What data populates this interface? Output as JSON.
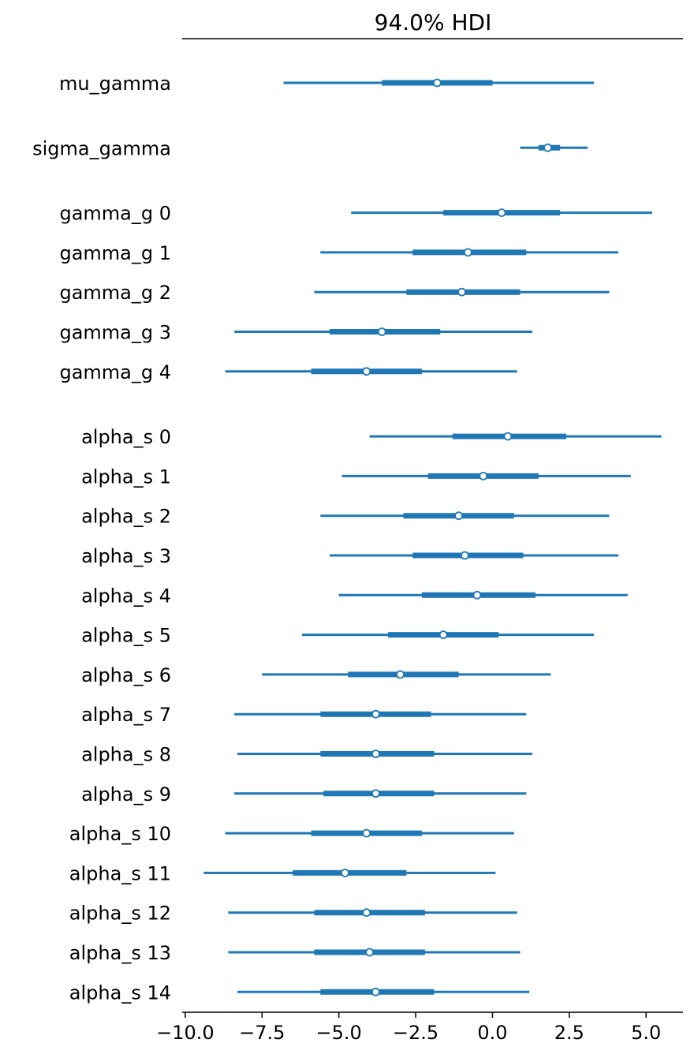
{
  "chart_data": {
    "type": "forest",
    "title": "94.0% HDI",
    "xlim": [
      -10.1,
      6.2
    ],
    "xticks": [
      {
        "value": -10.0,
        "label": "−10.0"
      },
      {
        "value": -7.5,
        "label": "−7.5"
      },
      {
        "value": -5.0,
        "label": "−5.0"
      },
      {
        "value": -2.5,
        "label": "−2.5"
      },
      {
        "value": 0.0,
        "label": "0.0"
      },
      {
        "value": 2.5,
        "label": "2.5"
      },
      {
        "value": 5.0,
        "label": "5.0"
      }
    ],
    "grid": false,
    "colors": {
      "interval": "#1f77b4",
      "point_face": "#ffffff",
      "point_edge": "#1f77b4",
      "axis": "#000000"
    },
    "groups": [
      {
        "rows": [
          {
            "label": "mu_gamma",
            "hdi_low": -6.8,
            "hdi_high": 3.3,
            "iqr_low": -3.6,
            "iqr_high": 0.0,
            "point": -1.8
          }
        ]
      },
      {
        "rows": [
          {
            "label": "sigma_gamma",
            "hdi_low": 0.9,
            "hdi_high": 3.1,
            "iqr_low": 1.5,
            "iqr_high": 2.2,
            "point": 1.8
          }
        ]
      },
      {
        "rows": [
          {
            "label": "gamma_g 0",
            "hdi_low": -4.6,
            "hdi_high": 5.2,
            "iqr_low": -1.6,
            "iqr_high": 2.2,
            "point": 0.3
          },
          {
            "label": "gamma_g 1",
            "hdi_low": -5.6,
            "hdi_high": 4.1,
            "iqr_low": -2.6,
            "iqr_high": 1.1,
            "point": -0.8
          },
          {
            "label": "gamma_g 2",
            "hdi_low": -5.8,
            "hdi_high": 3.8,
            "iqr_low": -2.8,
            "iqr_high": 0.9,
            "point": -1.0
          },
          {
            "label": "gamma_g 3",
            "hdi_low": -8.4,
            "hdi_high": 1.3,
            "iqr_low": -5.3,
            "iqr_high": -1.7,
            "point": -3.6
          },
          {
            "label": "gamma_g 4",
            "hdi_low": -8.7,
            "hdi_high": 0.8,
            "iqr_low": -5.9,
            "iqr_high": -2.3,
            "point": -4.1
          }
        ]
      },
      {
        "rows": [
          {
            "label": "alpha_s 0",
            "hdi_low": -4.0,
            "hdi_high": 5.5,
            "iqr_low": -1.3,
            "iqr_high": 2.4,
            "point": 0.5
          },
          {
            "label": "alpha_s 1",
            "hdi_low": -4.9,
            "hdi_high": 4.5,
            "iqr_low": -2.1,
            "iqr_high": 1.5,
            "point": -0.3
          },
          {
            "label": "alpha_s 2",
            "hdi_low": -5.6,
            "hdi_high": 3.8,
            "iqr_low": -2.9,
            "iqr_high": 0.7,
            "point": -1.1
          },
          {
            "label": "alpha_s 3",
            "hdi_low": -5.3,
            "hdi_high": 4.1,
            "iqr_low": -2.6,
            "iqr_high": 1.0,
            "point": -0.9
          },
          {
            "label": "alpha_s 4",
            "hdi_low": -5.0,
            "hdi_high": 4.4,
            "iqr_low": -2.3,
            "iqr_high": 1.4,
            "point": -0.5
          },
          {
            "label": "alpha_s 5",
            "hdi_low": -6.2,
            "hdi_high": 3.3,
            "iqr_low": -3.4,
            "iqr_high": 0.2,
            "point": -1.6
          },
          {
            "label": "alpha_s 6",
            "hdi_low": -7.5,
            "hdi_high": 1.9,
            "iqr_low": -4.7,
            "iqr_high": -1.1,
            "point": -3.0
          },
          {
            "label": "alpha_s 7",
            "hdi_low": -8.4,
            "hdi_high": 1.1,
            "iqr_low": -5.6,
            "iqr_high": -2.0,
            "point": -3.8
          },
          {
            "label": "alpha_s 8",
            "hdi_low": -8.3,
            "hdi_high": 1.3,
            "iqr_low": -5.6,
            "iqr_high": -1.9,
            "point": -3.8
          },
          {
            "label": "alpha_s 9",
            "hdi_low": -8.4,
            "hdi_high": 1.1,
            "iqr_low": -5.5,
            "iqr_high": -1.9,
            "point": -3.8
          },
          {
            "label": "alpha_s 10",
            "hdi_low": -8.7,
            "hdi_high": 0.7,
            "iqr_low": -5.9,
            "iqr_high": -2.3,
            "point": -4.1
          },
          {
            "label": "alpha_s 11",
            "hdi_low": -9.4,
            "hdi_high": 0.1,
            "iqr_low": -6.5,
            "iqr_high": -2.8,
            "point": -4.8
          },
          {
            "label": "alpha_s 12",
            "hdi_low": -8.6,
            "hdi_high": 0.8,
            "iqr_low": -5.8,
            "iqr_high": -2.2,
            "point": -4.1
          },
          {
            "label": "alpha_s 13",
            "hdi_low": -8.6,
            "hdi_high": 0.9,
            "iqr_low": -5.8,
            "iqr_high": -2.2,
            "point": -4.0
          },
          {
            "label": "alpha_s 14",
            "hdi_low": -8.3,
            "hdi_high": 1.2,
            "iqr_low": -5.6,
            "iqr_high": -1.9,
            "point": -3.8
          }
        ]
      }
    ]
  }
}
